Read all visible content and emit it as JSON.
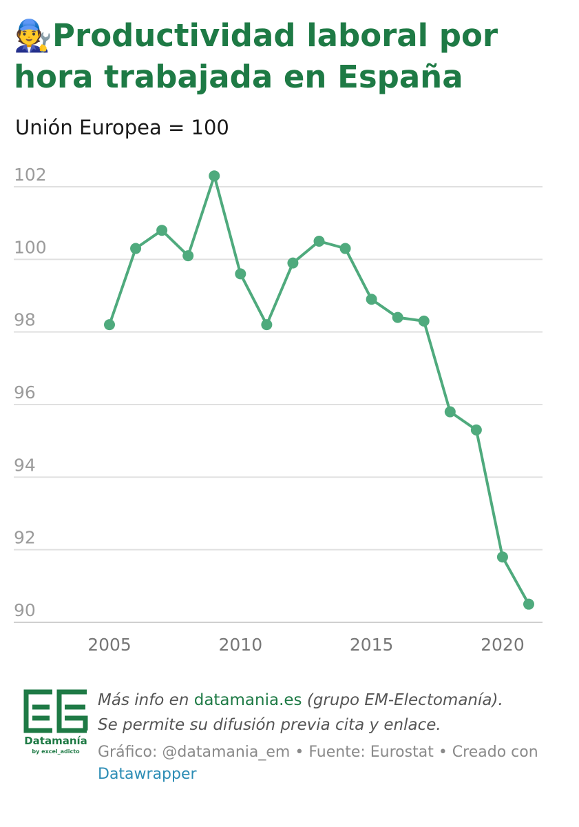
{
  "header": {
    "emoji": "🧑‍🔧",
    "title": "Productividad laboral por hora trabajada en España",
    "subtitle": "Unión Europea = 100"
  },
  "chart_data": {
    "type": "line",
    "title": "Productividad laboral por hora trabajada en España",
    "subtitle": "Unión Europea = 100",
    "xlabel": "",
    "ylabel": "",
    "x": [
      2005,
      2006,
      2007,
      2008,
      2009,
      2010,
      2011,
      2012,
      2013,
      2014,
      2015,
      2016,
      2017,
      2018,
      2019,
      2020,
      2021
    ],
    "series": [
      {
        "name": "",
        "values": [
          98.2,
          100.3,
          100.8,
          100.1,
          102.3,
          99.6,
          98.2,
          99.9,
          100.5,
          100.3,
          98.9,
          98.4,
          98.3,
          95.8,
          95.3,
          91.8,
          90.5
        ]
      }
    ],
    "xticks": [
      "2005",
      "2010",
      "2015",
      "2020"
    ],
    "yticks": [
      "90",
      "92",
      "94",
      "96",
      "98",
      "100",
      "102"
    ],
    "xlim": [
      2005,
      2021
    ],
    "ylim": [
      90,
      102
    ],
    "grid": true,
    "legend": "none",
    "line_color": "#4faa7d",
    "grid_color": "#e0e0e0",
    "tick_color": "#9b9b9b"
  },
  "footer": {
    "logo_name": "Datamanía",
    "logo_sub": "by excel_adicto",
    "info_prefix": "Más info en ",
    "info_link": "datamania.es",
    "info_suffix": " (grupo EM-Electomanía).",
    "info_line2": "Se permite su difusión previa cita y enlace.",
    "credits": "Gráfico: @datamania_em • Fuente: Eurostat • Creado con ",
    "credits_link": "Datawrapper"
  }
}
